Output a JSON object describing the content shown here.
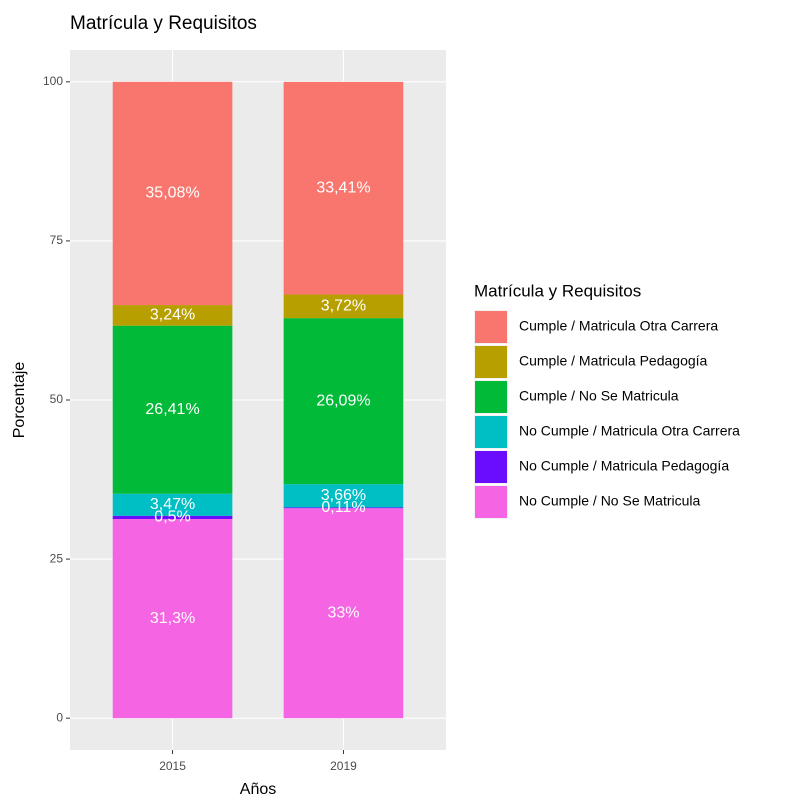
{
  "chart_data": {
    "type": "stacked_bar",
    "title": "Matrícula y Requisitos",
    "x_label": "Años",
    "y_label": "Porcentaje",
    "legend_title": "Matrícula y Requisitos",
    "categories": [
      "2015",
      "2019"
    ],
    "ylim": [
      -5,
      105
    ],
    "yticks": [
      0,
      25,
      50,
      75,
      100
    ],
    "grid": true,
    "legend_position": "right",
    "series": [
      {
        "name": "Cumple / Matricula Otra Carrera",
        "color": "#F8766D",
        "values": [
          35.08,
          33.41
        ],
        "value_labels": [
          "35,08%",
          "33,41%"
        ]
      },
      {
        "name": "Cumple / Matricula Pedagogía",
        "color": "#B79F00",
        "values": [
          3.24,
          3.72
        ],
        "value_labels": [
          "3,24%",
          "3,72%"
        ]
      },
      {
        "name": "Cumple / No Se Matricula",
        "color": "#00BA38",
        "values": [
          26.41,
          26.09
        ],
        "value_labels": [
          "26,41%",
          "26,09%"
        ]
      },
      {
        "name": "No Cumple / Matricula Otra Carrera",
        "color": "#00BFC4",
        "values": [
          3.47,
          3.66
        ],
        "value_labels": [
          "3,47%",
          "3,66%"
        ]
      },
      {
        "name": "No Cumple / Matricula Pedagogía",
        "color": "#6A0DFF",
        "values": [
          0.5,
          0.11
        ],
        "value_labels": [
          "0,5%",
          "0,11%"
        ]
      },
      {
        "name": "No Cumple / No Se Matricula",
        "color": "#F564E3",
        "values": [
          31.3,
          33
        ],
        "value_labels": [
          "31,3%",
          "33%"
        ]
      }
    ]
  }
}
